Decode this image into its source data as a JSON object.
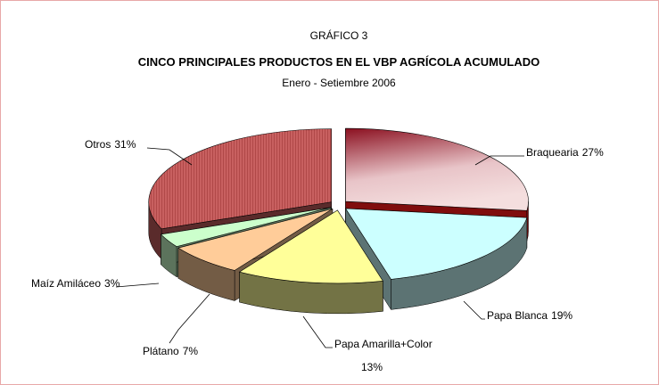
{
  "chart_data": {
    "type": "pie3d",
    "kicker": "GRÁFICO 3",
    "title": "CINCO PRINCIPALES PRODUCTOS EN EL VBP AGRÍCOLA ACUMULADO",
    "subtitle": "Enero - Setiembre 2006",
    "categories": [
      "Braquearia",
      "Papa Blanca",
      "Papa Amarilla+Color",
      "Plátano",
      "Maíz Amiláceo",
      "Otros"
    ],
    "values": [
      27,
      19,
      13,
      7,
      3,
      31
    ],
    "value_labels": [
      "27%",
      "19%",
      "13%",
      "7%",
      "3%",
      "31%"
    ],
    "colors": [
      "#e8c4c8",
      "#ccffff",
      "#ffff99",
      "#ffcc99",
      "#ccffcc",
      "#c86060"
    ]
  }
}
